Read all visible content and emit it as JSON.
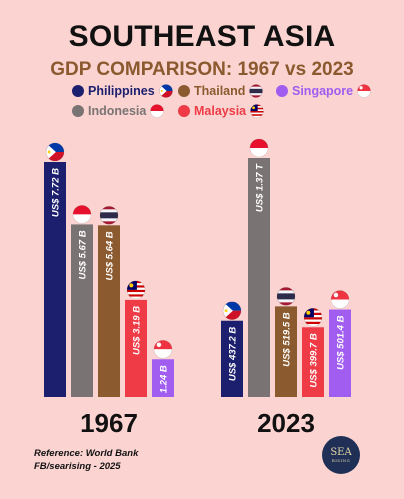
{
  "title": "SOUTHEAST ASIA",
  "subtitle": "GDP COMPARISON: 1967 vs 2023",
  "legend": [
    {
      "name": "Philippines",
      "color": "#1c1f6e",
      "flag": "ph"
    },
    {
      "name": "Thailand",
      "color": "#8b5a2f",
      "flag": "th"
    },
    {
      "name": "Singapore",
      "color": "#a15cf0",
      "flag": "sg"
    },
    {
      "name": "Indonesia",
      "color": "#7a7373",
      "flag": "id"
    },
    {
      "name": "Malaysia",
      "color": "#ee3b46",
      "flag": "my"
    }
  ],
  "chart_data": {
    "type": "bar",
    "categories": [
      "1967",
      "2023"
    ],
    "series": [
      {
        "name": "Philippines",
        "color": "#1c1f6e",
        "flag": "ph",
        "values": [
          7.72,
          437.2
        ],
        "labels": [
          "US$ 7.72 B",
          "US$ 437.2 B"
        ]
      },
      {
        "name": "Indonesia",
        "color": "#7a7373",
        "flag": "id",
        "values": [
          5.67,
          1370
        ],
        "labels": [
          "US$ 5.67 B",
          "US$ 1.37 T"
        ]
      },
      {
        "name": "Thailand",
        "color": "#8b5a2f",
        "flag": "th",
        "values": [
          5.64,
          519.5
        ],
        "labels": [
          "US$ 5.64 B",
          "US$ 519.5 B"
        ]
      },
      {
        "name": "Malaysia",
        "color": "#ee3b46",
        "flag": "my",
        "values": [
          3.19,
          399.7
        ],
        "labels": [
          "US$ 3.19 B",
          "US$ 399.7 B"
        ]
      },
      {
        "name": "Singapore",
        "color": "#a15cf0",
        "flag": "sg",
        "values": [
          1.24,
          501.4
        ],
        "labels": [
          "1.24 B",
          "US$ 501.4 B"
        ]
      }
    ],
    "unit": "US$ billions"
  },
  "footer": {
    "reference": "Reference: World Bank",
    "credit": "FB/searising - 2025",
    "logo_text": "SEA",
    "logo_sub": "RISING"
  }
}
